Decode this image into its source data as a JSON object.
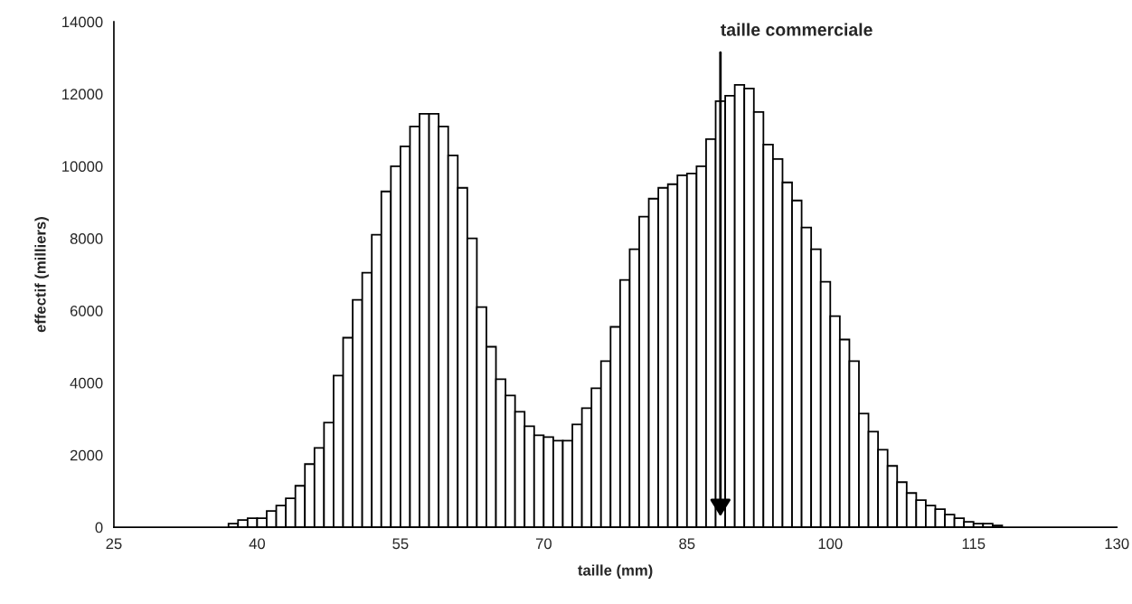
{
  "chart_data": {
    "type": "histogram",
    "xlabel": "taille (mm)",
    "ylabel": "effectif (milliers)",
    "bins": [
      25,
      26,
      27,
      28,
      29,
      30,
      31,
      32,
      33,
      34,
      35,
      36,
      37,
      38,
      39,
      40,
      41,
      42,
      43,
      44,
      45,
      46,
      47,
      48,
      49,
      50,
      51,
      52,
      53,
      54,
      55,
      56,
      57,
      58,
      59,
      60,
      61,
      62,
      63,
      64,
      65,
      66,
      67,
      68,
      69,
      70,
      71,
      72,
      73,
      74,
      75,
      76,
      77,
      78,
      79,
      80,
      81,
      82,
      83,
      84,
      85,
      86,
      87,
      88,
      89,
      90,
      91,
      92,
      93,
      94,
      95,
      96,
      97,
      98,
      99,
      100,
      101,
      102,
      103,
      104,
      105,
      106,
      107,
      108,
      109,
      110,
      111,
      112,
      113,
      114,
      115,
      116,
      117,
      118,
      119,
      120,
      121,
      122,
      123,
      124,
      125,
      126,
      127,
      128,
      129,
      130
    ],
    "values": [
      0,
      0,
      0,
      0,
      0,
      0,
      0,
      0,
      0,
      0,
      0,
      0,
      100,
      200,
      250,
      250,
      450,
      600,
      800,
      1150,
      1750,
      2200,
      2900,
      4200,
      5250,
      6300,
      7050,
      8100,
      9300,
      10000,
      10550,
      11100,
      11450,
      11450,
      11100,
      10300,
      9400,
      8000,
      6100,
      5000,
      4100,
      3650,
      3200,
      2800,
      2550,
      2500,
      2400,
      2400,
      2850,
      3300,
      3850,
      4600,
      5550,
      6850,
      7700,
      8600,
      9100,
      9400,
      9500,
      9750,
      9800,
      10000,
      10750,
      11800,
      11950,
      12250,
      12150,
      11500,
      10600,
      10200,
      9550,
      9050,
      8300,
      7700,
      6800,
      5850,
      5200,
      4600,
      3150,
      2650,
      2150,
      1700,
      1250,
      950,
      750,
      600,
      500,
      350,
      250,
      150,
      100,
      100,
      50,
      0,
      0,
      0,
      0,
      0,
      0,
      0,
      0,
      0,
      0,
      0,
      0
    ],
    "color": "#ffffff",
    "xlim": [
      25,
      130
    ],
    "xticks": [
      25,
      40,
      55,
      70,
      85,
      100,
      115,
      130
    ],
    "ylim": [
      0,
      14000
    ],
    "yticks": [
      0,
      2000,
      4000,
      6000,
      8000,
      10000,
      12000,
      14000
    ],
    "grid": false,
    "annotations": [
      {
        "text": "taille commerciale",
        "x": 88.5,
        "y": 300
      }
    ]
  }
}
